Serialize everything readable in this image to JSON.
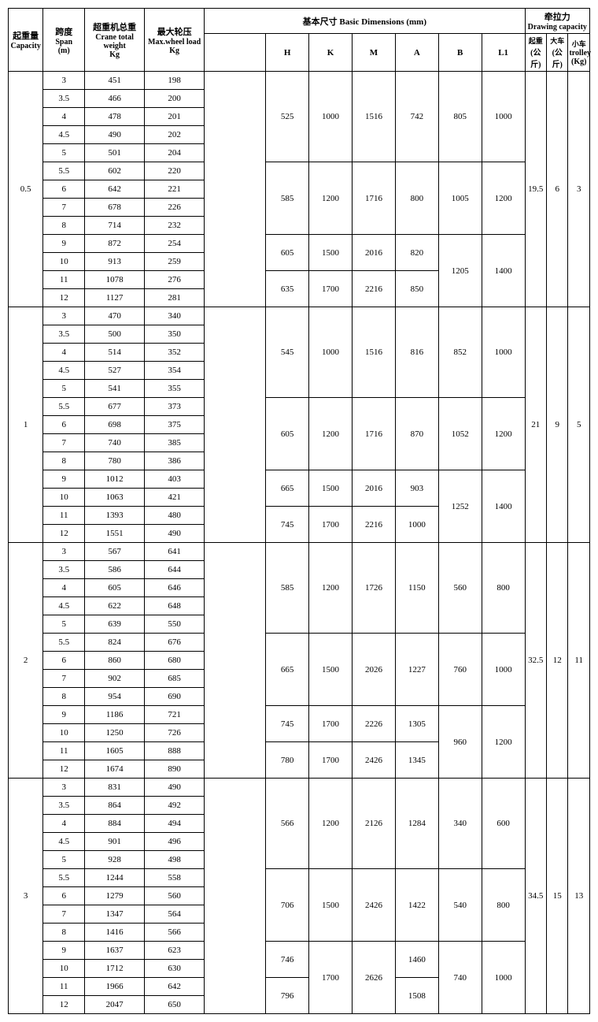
{
  "headers": {
    "capacity_cn": "起重量",
    "capacity_en": "Capacity",
    "span_cn": "跨度",
    "span_en": "Span",
    "span_unit": "(m)",
    "totalweight_cn": "超重机总重",
    "totalweight_en": "Crane total weight",
    "totalweight_unit": "Kg",
    "maxload_cn": "最大轮压",
    "maxload_en": "Max.wheel load",
    "maxload_unit": "Kg",
    "basic_cn_en": "基本尺寸   Basic   Dimensions    (mm)",
    "H": "H",
    "K": "K",
    "M": "M",
    "A": "A",
    "B": "B",
    "L1": "L1",
    "drawing_cn": "牵拉力",
    "drawing_en": "Drawing  capacity",
    "d1_cn": "起重",
    "d1_unit": "(公斤)",
    "d2_cn": "大车",
    "d2_unit": "(公斤)",
    "d3_cn": "小车",
    "d3_en": "trolley",
    "d3_unit": "(Kg)"
  },
  "blocks": [
    {
      "capacity": "0.5",
      "drawing": [
        "19.5",
        "6",
        "3"
      ],
      "rows": [
        {
          "span": "3",
          "tw": "451",
          "ml": "198"
        },
        {
          "span": "3.5",
          "tw": "466",
          "ml": "200"
        },
        {
          "span": "4",
          "tw": "478",
          "ml": "201"
        },
        {
          "span": "4.5",
          "tw": "490",
          "ml": "202"
        },
        {
          "span": "5",
          "tw": "501",
          "ml": "204"
        },
        {
          "span": "5.5",
          "tw": "602",
          "ml": "220"
        },
        {
          "span": "6",
          "tw": "642",
          "ml": "221"
        },
        {
          "span": "7",
          "tw": "678",
          "ml": "226"
        },
        {
          "span": "8",
          "tw": "714",
          "ml": "232"
        },
        {
          "span": "9",
          "tw": "872",
          "ml": "254"
        },
        {
          "span": "10",
          "tw": "913",
          "ml": "259"
        },
        {
          "span": "11",
          "tw": "1078",
          "ml": "276"
        },
        {
          "span": "12",
          "tw": "1127",
          "ml": "281"
        }
      ],
      "dims": [
        {
          "rowspan": 5,
          "H": "525",
          "K": "1000",
          "M": "1516",
          "A": "742",
          "B": "805",
          "L1": "1000",
          "B_rowspan": 5,
          "L1_rowspan": 5
        },
        {
          "rowspan": 4,
          "H": "585",
          "K": "1200",
          "M": "1716",
          "A": "800",
          "B": "1005",
          "L1": "1200",
          "B_rowspan": 4,
          "L1_rowspan": 4
        },
        {
          "rowspan": 2,
          "H": "605",
          "K": "1500",
          "M": "2016",
          "A": "820",
          "B": "1205",
          "L1": "1400",
          "B_rowspan": 4,
          "L1_rowspan": 4
        },
        {
          "rowspan": 2,
          "H": "635",
          "K": "1700",
          "M": "2216",
          "A": "850"
        }
      ]
    },
    {
      "capacity": "1",
      "drawing": [
        "21",
        "9",
        "5"
      ],
      "rows": [
        {
          "span": "3",
          "tw": "470",
          "ml": "340"
        },
        {
          "span": "3.5",
          "tw": "500",
          "ml": "350"
        },
        {
          "span": "4",
          "tw": "514",
          "ml": "352"
        },
        {
          "span": "4.5",
          "tw": "527",
          "ml": "354"
        },
        {
          "span": "5",
          "tw": "541",
          "ml": "355"
        },
        {
          "span": "5.5",
          "tw": "677",
          "ml": "373"
        },
        {
          "span": "6",
          "tw": "698",
          "ml": "375"
        },
        {
          "span": "7",
          "tw": "740",
          "ml": "385"
        },
        {
          "span": "8",
          "tw": "780",
          "ml": "386"
        },
        {
          "span": "9",
          "tw": "1012",
          "ml": "403"
        },
        {
          "span": "10",
          "tw": "1063",
          "ml": "421"
        },
        {
          "span": "11",
          "tw": "1393",
          "ml": "480"
        },
        {
          "span": "12",
          "tw": "1551",
          "ml": "490"
        }
      ],
      "dims": [
        {
          "rowspan": 5,
          "H": "545",
          "K": "1000",
          "M": "1516",
          "A": "816",
          "B": "852",
          "L1": "1000",
          "B_rowspan": 5,
          "L1_rowspan": 5
        },
        {
          "rowspan": 4,
          "H": "605",
          "K": "1200",
          "M": "1716",
          "A": "870",
          "B": "1052",
          "L1": "1200",
          "B_rowspan": 4,
          "L1_rowspan": 4
        },
        {
          "rowspan": 2,
          "H": "665",
          "K": "1500",
          "M": "2016",
          "A": "903",
          "B": "1252",
          "L1": "1400",
          "B_rowspan": 4,
          "L1_rowspan": 4
        },
        {
          "rowspan": 2,
          "H": "745",
          "K": "1700",
          "M": "2216",
          "A": "1000"
        }
      ]
    },
    {
      "capacity": "2",
      "drawing": [
        "32.5",
        "12",
        "11"
      ],
      "rows": [
        {
          "span": "3",
          "tw": "567",
          "ml": "641"
        },
        {
          "span": "3.5",
          "tw": "586",
          "ml": "644"
        },
        {
          "span": "4",
          "tw": "605",
          "ml": "646"
        },
        {
          "span": "4.5",
          "tw": "622",
          "ml": "648"
        },
        {
          "span": "5",
          "tw": "639",
          "ml": "550"
        },
        {
          "span": "5.5",
          "tw": "824",
          "ml": "676"
        },
        {
          "span": "6",
          "tw": "860",
          "ml": "680"
        },
        {
          "span": "7",
          "tw": "902",
          "ml": "685"
        },
        {
          "span": "8",
          "tw": "954",
          "ml": "690"
        },
        {
          "span": "9",
          "tw": "1186",
          "ml": "721"
        },
        {
          "span": "10",
          "tw": "1250",
          "ml": "726"
        },
        {
          "span": "11",
          "tw": "1605",
          "ml": "888"
        },
        {
          "span": "12",
          "tw": "1674",
          "ml": "890"
        }
      ],
      "dims": [
        {
          "rowspan": 5,
          "H": "585",
          "K": "1200",
          "M": "1726",
          "A": "1150",
          "B": "560",
          "L1": "800",
          "B_rowspan": 5,
          "L1_rowspan": 5
        },
        {
          "rowspan": 4,
          "H": "665",
          "K": "1500",
          "M": "2026",
          "A": "1227",
          "B": "760",
          "L1": "1000",
          "B_rowspan": 4,
          "L1_rowspan": 4
        },
        {
          "rowspan": 2,
          "H": "745",
          "K": "1700",
          "M": "2226",
          "A": "1305",
          "B": "960",
          "L1": "1200",
          "B_rowspan": 4,
          "L1_rowspan": 4
        },
        {
          "rowspan": 2,
          "H": "780",
          "K": "1700",
          "M": "2426",
          "A": "1345"
        }
      ]
    },
    {
      "capacity": "3",
      "drawing": [
        "34.5",
        "15",
        "13"
      ],
      "rows": [
        {
          "span": "3",
          "tw": "831",
          "ml": "490"
        },
        {
          "span": "3.5",
          "tw": "864",
          "ml": "492"
        },
        {
          "span": "4",
          "tw": "884",
          "ml": "494"
        },
        {
          "span": "4.5",
          "tw": "901",
          "ml": "496"
        },
        {
          "span": "5",
          "tw": "928",
          "ml": "498"
        },
        {
          "span": "5.5",
          "tw": "1244",
          "ml": "558"
        },
        {
          "span": "6",
          "tw": "1279",
          "ml": "560"
        },
        {
          "span": "7",
          "tw": "1347",
          "ml": "564"
        },
        {
          "span": "8",
          "tw": "1416",
          "ml": "566"
        },
        {
          "span": "9",
          "tw": "1637",
          "ml": "623"
        },
        {
          "span": "10",
          "tw": "1712",
          "ml": "630"
        },
        {
          "span": "11",
          "tw": "1966",
          "ml": "642"
        },
        {
          "span": "12",
          "tw": "2047",
          "ml": "650"
        }
      ],
      "dims": [
        {
          "rowspan": 5,
          "H": "566",
          "K": "1200",
          "M": "2126",
          "A": "1284",
          "B": "340",
          "L1": "600",
          "B_rowspan": 5,
          "L1_rowspan": 5,
          "K_rowspan": 5,
          "M_rowspan": 5
        },
        {
          "rowspan": 4,
          "H": "706",
          "K": "1500",
          "M": "2426",
          "A": "1422",
          "B": "540",
          "L1": "800",
          "B_rowspan": 4,
          "L1_rowspan": 4,
          "K_rowspan": 4,
          "M_rowspan": 4
        },
        {
          "rowspan": 2,
          "H": "746",
          "K": "1700",
          "M": "2626",
          "A": "1460",
          "B": "740",
          "L1": "1000",
          "B_rowspan": 4,
          "L1_rowspan": 4,
          "K_rowspan": 4,
          "M_rowspan": 4
        },
        {
          "rowspan": 2,
          "H": "796",
          "A": "1508"
        }
      ]
    }
  ]
}
